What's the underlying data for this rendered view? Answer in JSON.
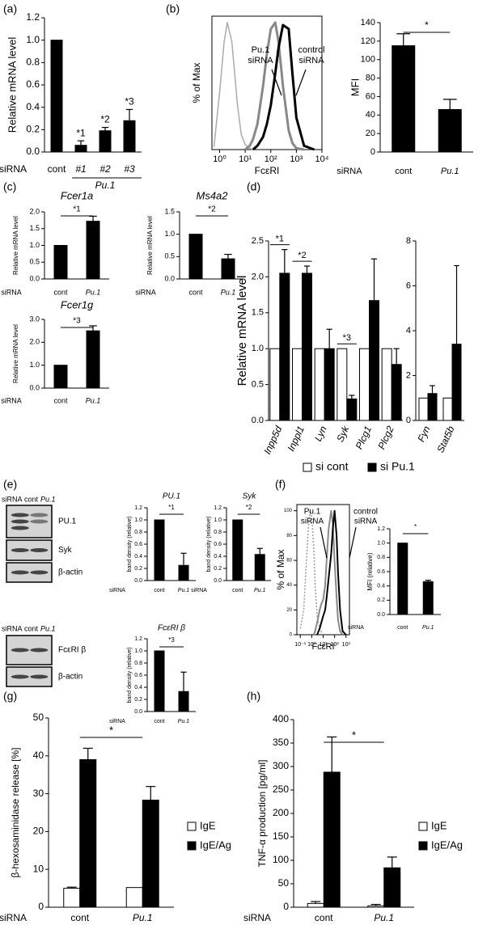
{
  "chart_data": [
    {
      "panel": "(a)",
      "type": "bar",
      "ylabel": "Relative mRNA level",
      "x_prefix": "siRNA",
      "categories": [
        "cont",
        "#1",
        "#2",
        "#3"
      ],
      "group_label": "Pu.1",
      "series": [
        {
          "color": "#000000",
          "values": [
            1.0,
            0.06,
            0.19,
            0.28
          ],
          "errors": [
            null,
            0.04,
            0.03,
            0.1
          ]
        }
      ],
      "annotations": [
        null,
        "*1",
        "*2",
        "*3"
      ],
      "ylim": [
        0,
        1.2
      ],
      "yticks": [
        {
          "value": 0,
          "label": "0.0"
        },
        0.2,
        0.4,
        0.6,
        0.8,
        {
          "value": 1,
          "label": "1.0"
        },
        1.2
      ]
    },
    {
      "panel": "(b)",
      "type": "line",
      "log_x": true,
      "ylabel": "% of Max",
      "xlabel": "FcεRI",
      "x": [
        0.6,
        1,
        1.5,
        2,
        3,
        5,
        7,
        10,
        15,
        20,
        30,
        50,
        70,
        100,
        150,
        200,
        300,
        500,
        700,
        1000,
        2000,
        5000
      ],
      "series": [
        {
          "color": "#aaaaaa",
          "values": [
            2,
            45,
            85,
            100,
            85,
            35,
            12,
            4,
            1,
            0,
            null,
            null,
            null,
            null,
            null,
            null,
            null,
            null,
            null,
            null,
            null,
            null
          ]
        },
        {
          "color": "#888888",
          "values": [
            null,
            null,
            null,
            null,
            null,
            null,
            null,
            0,
            3,
            8,
            20,
            50,
            75,
            95,
            100,
            85,
            50,
            15,
            5,
            1,
            0,
            null
          ]
        },
        {
          "color": "#000000",
          "values": [
            null,
            null,
            null,
            null,
            null,
            null,
            null,
            null,
            null,
            0,
            3,
            10,
            20,
            35,
            60,
            80,
            98,
            95,
            60,
            25,
            3,
            0
          ]
        }
      ],
      "annotations": [
        [
          "Pu.1",
          "siRNA"
        ],
        [
          "control",
          "siRNA"
        ]
      ],
      "xlim": [
        0.5,
        10000
      ],
      "xticks": [
        {
          "value": 1,
          "label": "10⁰"
        },
        {
          "value": 10,
          "label": "10¹"
        },
        {
          "value": 100,
          "label": "10²"
        },
        {
          "value": 1000,
          "label": "10³"
        },
        {
          "value": 10000,
          "label": "10⁴"
        }
      ],
      "ylim": [
        0,
        105
      ]
    },
    {
      "type": "bar",
      "ylabel": "MFI",
      "x_prefix": "siRNA",
      "categories": [
        "cont",
        "Pu.1"
      ],
      "series": [
        {
          "color": "#000000",
          "values": [
            115,
            46
          ],
          "errors": [
            13,
            11
          ]
        }
      ],
      "significance": "*",
      "ylim": [
        0,
        140
      ],
      "yticks": [
        0,
        20,
        40,
        60,
        80,
        100,
        120,
        140
      ]
    },
    {
      "panel": "(c)",
      "type": "bar",
      "title": "Fcer1a",
      "ylabel": "Relative mRNA level",
      "x_prefix": "siRNA",
      "categories": [
        "cont",
        "Pu.1"
      ],
      "series": [
        {
          "color": "#000000",
          "values": [
            1.0,
            1.72
          ],
          "errors": [
            null,
            0.15
          ]
        }
      ],
      "significance": "*1",
      "ylim": [
        0,
        2
      ],
      "yticks": [
        {
          "value": 0,
          "label": "0.0"
        },
        0.5,
        {
          "value": 1,
          "label": "1.0"
        },
        1.5,
        {
          "value": 2,
          "label": "2.0"
        }
      ]
    },
    {
      "type": "bar",
      "title": "Ms4a2",
      "ylabel": "Relative mRNA level",
      "x_prefix": "siRNA",
      "categories": [
        "cont",
        "Pu.1"
      ],
      "series": [
        {
          "color": "#000000",
          "values": [
            1.0,
            0.45
          ],
          "errors": [
            null,
            0.1
          ]
        }
      ],
      "significance": "*2",
      "ylim": [
        0,
        1.5
      ],
      "yticks": [
        {
          "value": 0,
          "label": "0.0"
        },
        0.5,
        {
          "value": 1,
          "label": "1.0"
        },
        1.5
      ]
    },
    {
      "type": "bar",
      "title": "Fcer1g",
      "ylabel": "Relative mRNA level",
      "x_prefix": "siRNA",
      "categories": [
        "cont",
        "Pu.1"
      ],
      "series": [
        {
          "color": "#000000",
          "values": [
            1.0,
            2.5
          ],
          "errors": [
            null,
            0.22
          ]
        }
      ],
      "significance": "*3",
      "ylim": [
        0,
        3
      ],
      "yticks": [
        {
          "value": 0,
          "label": "0.0"
        },
        {
          "value": 1,
          "label": "1.0"
        },
        {
          "value": 2,
          "label": "2.0"
        },
        {
          "value": 3,
          "label": "3.0"
        }
      ]
    },
    {
      "panel": "(d)",
      "type": "bar",
      "ylabel": "Relative mRNA level",
      "categories": [
        "Inpp5d",
        "Inppl1",
        "Lyn",
        "Syk",
        "Plcg1",
        "Plcg2"
      ],
      "series": [
        {
          "name": "si cont",
          "color": "#ffffff",
          "values": [
            1,
            1,
            1,
            1,
            1,
            1
          ]
        },
        {
          "name": "si Pu.1",
          "color": "#000000",
          "values": [
            2.05,
            2.05,
            1.0,
            0.3,
            1.67,
            0.78
          ],
          "errors": [
            0.33,
            0.1,
            0.27,
            0.05,
            0.58,
            0.22
          ]
        }
      ],
      "annotations": [
        "*1",
        "*2",
        null,
        "*3",
        null,
        null
      ],
      "ylim": [
        0,
        2.5
      ],
      "yticks": [
        {
          "value": 0,
          "label": "0.0"
        },
        0.5,
        {
          "value": 1,
          "label": "1.0"
        },
        1.5,
        {
          "value": 2,
          "label": "2.0"
        },
        2.5
      ]
    },
    {
      "type": "bar",
      "categories": [
        "Fyn",
        "Stat5b"
      ],
      "series": [
        {
          "color": "#ffffff",
          "values": [
            1,
            1
          ]
        },
        {
          "color": "#000000",
          "values": [
            1.2,
            3.4
          ],
          "errors": [
            0.35,
            3.5
          ]
        }
      ],
      "ylim": [
        0,
        8
      ],
      "yticks": [
        0,
        2,
        4,
        6,
        8
      ]
    },
    {
      "panel": "(e)",
      "type": "bar",
      "title": "PU.1",
      "ylabel": "band density (relative)",
      "x_prefix": "siRNA",
      "categories": [
        "cont",
        "Pu.1"
      ],
      "series": [
        {
          "color": "#000000",
          "values": [
            1.0,
            0.25
          ],
          "errors": [
            null,
            0.2
          ]
        }
      ],
      "significance": "*1",
      "ylim": [
        0,
        1.2
      ],
      "yticks": [
        {
          "value": 0,
          "label": "0.0"
        },
        0.2,
        0.4,
        0.6,
        0.8,
        {
          "value": 1,
          "label": "1.0"
        },
        1.2
      ]
    },
    {
      "type": "bar",
      "title": "Syk",
      "ylabel": "band density (relative)",
      "x_prefix": "siRNA",
      "categories": [
        "cont",
        "Pu.1"
      ],
      "series": [
        {
          "color": "#000000",
          "values": [
            1.0,
            0.43
          ],
          "errors": [
            null,
            0.1
          ]
        }
      ],
      "significance": "*2",
      "ylim": [
        0,
        1.2
      ],
      "yticks": [
        {
          "value": 0,
          "label": "0.0"
        },
        0.2,
        0.4,
        0.6,
        0.8,
        {
          "value": 1,
          "label": "1.0"
        },
        1.2
      ]
    },
    {
      "type": "bar",
      "title": "FcεRI β",
      "ylabel": "band density (relative)",
      "x_prefix": "siRNA",
      "categories": [
        "cont",
        "Pu.1"
      ],
      "series": [
        {
          "color": "#000000",
          "values": [
            1.0,
            0.33
          ],
          "errors": [
            null,
            0.32
          ]
        }
      ],
      "significance": "*3",
      "ylim": [
        0,
        1.2
      ],
      "yticks": [
        {
          "value": 0,
          "label": "0.0"
        },
        0.2,
        0.4,
        0.6,
        0.8,
        {
          "value": 1,
          "label": "1.0"
        },
        1.2
      ]
    },
    {
      "panel": "(f)",
      "type": "line",
      "log_x": true,
      "ylabel": "% of Max",
      "xlabel": "FcεRI",
      "x": [
        0.1,
        0.2,
        0.3,
        0.5,
        0.7,
        1,
        1.5,
        2,
        3,
        5,
        7,
        10,
        15,
        20,
        30,
        50,
        70,
        100,
        150,
        200,
        300,
        500,
        1000
      ],
      "series": [
        {
          "color": "#999999",
          "dashed": true,
          "values": [
            5,
            20,
            50,
            85,
            100,
            95,
            70,
            40,
            15,
            5,
            2,
            0,
            null,
            null,
            null,
            null,
            null,
            null,
            null,
            null,
            null,
            null,
            null
          ]
        },
        {
          "color": "#888888",
          "values": [
            null,
            null,
            null,
            null,
            null,
            null,
            0,
            3,
            10,
            20,
            25,
            28,
            40,
            60,
            85,
            100,
            90,
            60,
            30,
            12,
            3,
            0,
            null
          ]
        },
        {
          "color": "#000000",
          "values": [
            null,
            null,
            null,
            null,
            null,
            null,
            null,
            null,
            0,
            5,
            10,
            15,
            20,
            30,
            45,
            65,
            85,
            100,
            80,
            50,
            20,
            3,
            0
          ]
        }
      ],
      "annotations": [
        [
          "Pu.1",
          "siRNA"
        ],
        [
          "control",
          "siRNA"
        ]
      ],
      "xlim": [
        0.05,
        2000
      ],
      "xticks": [
        {
          "value": 0.1,
          "label": "10⁻¹"
        },
        {
          "value": 1,
          "label": "10⁰"
        },
        {
          "value": 10,
          "label": "10¹"
        },
        {
          "value": 100,
          "label": "10²"
        },
        {
          "value": 1000,
          "label": "10³"
        }
      ],
      "ylim": [
        0,
        105
      ],
      "yticks": [
        0,
        20,
        40,
        60,
        80,
        100
      ]
    },
    {
      "type": "bar",
      "ylabel": "MFI (relative)",
      "x_prefix": "siRNA",
      "categories": [
        "cont",
        "Pu.1"
      ],
      "series": [
        {
          "color": "#000000",
          "values": [
            1.0,
            0.46
          ],
          "errors": [
            null,
            0.02
          ]
        }
      ],
      "significance": "*",
      "ylim": [
        0,
        1.2
      ],
      "yticks": [
        {
          "value": 0,
          "label": "0.0"
        },
        0.2,
        0.4,
        0.6,
        0.8,
        {
          "value": 1,
          "label": "1.0"
        },
        1.2
      ]
    },
    {
      "panel": "(g)",
      "type": "bar",
      "ylabel": "β-hexosaminidase release [%]",
      "x_prefix": "siRNA",
      "categories": [
        "cont",
        "Pu.1"
      ],
      "series": [
        {
          "name": "IgE",
          "color": "#ffffff",
          "values": [
            5.0,
            5.2
          ],
          "errors": [
            0.3,
            null
          ]
        },
        {
          "name": "IgE/Ag",
          "color": "#000000",
          "values": [
            39,
            28.3
          ],
          "errors": [
            3,
            3.6
          ]
        }
      ],
      "significance": "*",
      "ylim": [
        0,
        50
      ],
      "yticks": [
        0,
        10,
        20,
        30,
        40,
        50
      ]
    },
    {
      "panel": "(h)",
      "type": "bar",
      "ylabel": "TNF-α production [pg/ml]",
      "x_prefix": "siRNA",
      "categories": [
        "cont",
        "Pu.1"
      ],
      "series": [
        {
          "name": "IgE",
          "color": "#ffffff",
          "values": [
            8,
            3
          ],
          "errors": [
            4,
            3
          ]
        },
        {
          "name": "IgE/Ag",
          "color": "#000000",
          "values": [
            288,
            84
          ],
          "errors": [
            75,
            23
          ]
        }
      ],
      "significance": "*",
      "ylim": [
        0,
        400
      ],
      "yticks": [
        0,
        50,
        100,
        150,
        200,
        250,
        300,
        350,
        400
      ]
    }
  ],
  "blots": [
    {
      "header": [
        "siRNA",
        "cont",
        "Pu.1"
      ],
      "rows": [
        "PU.1",
        "Syk",
        "β-actin"
      ]
    },
    {
      "header": [
        "siRNA",
        "cont",
        "Pu.1"
      ],
      "rows": [
        "FcεRI β",
        "β-actin"
      ]
    }
  ]
}
